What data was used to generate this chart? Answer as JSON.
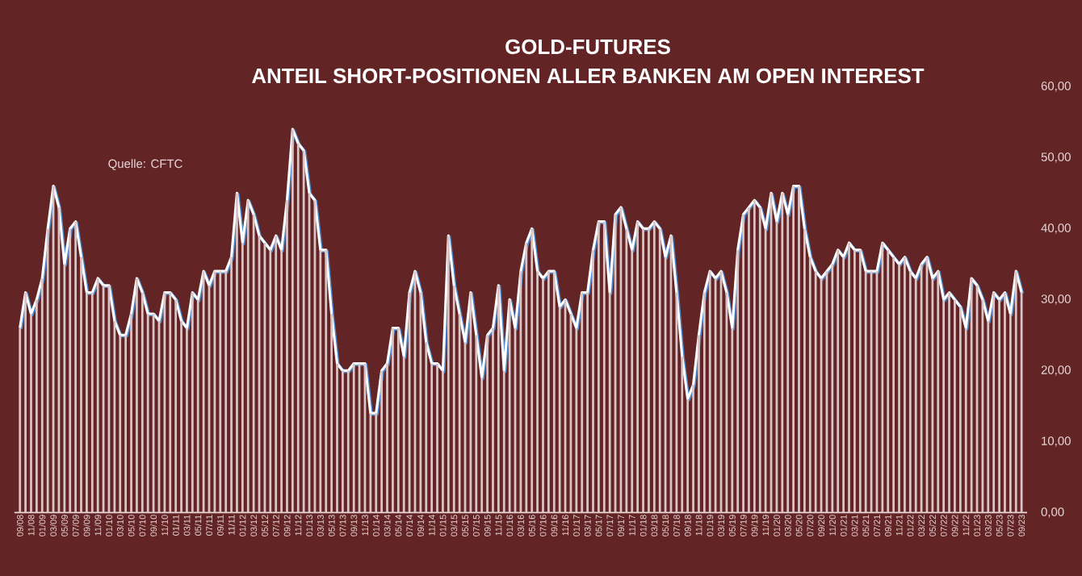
{
  "chart_data": {
    "type": "bar",
    "title": "GOLD-FUTURES",
    "subtitle": "ANTEIL SHORT-POSITIONEN ALLER BANKEN AM OPEN INTEREST",
    "annotations": [
      "Quelle: CFTC"
    ],
    "categories": [
      "09/08",
      null,
      "11/08",
      null,
      "01/09",
      null,
      "03/09",
      null,
      "05/09",
      null,
      "07/09",
      null,
      "09/09",
      null,
      "11/09",
      null,
      "01/10",
      null,
      "03/10",
      null,
      "05/10",
      null,
      "07/10",
      null,
      "09/10",
      null,
      "11/10",
      null,
      "01/11",
      null,
      "03/11",
      null,
      "05/11",
      null,
      "07/11",
      null,
      "09/11",
      null,
      "11/11",
      null,
      "01/12",
      null,
      "03/12",
      null,
      "05/12",
      null,
      "07/12",
      null,
      "09/12",
      null,
      "11/12",
      null,
      "01/13",
      null,
      "03/13",
      null,
      "05/13",
      null,
      "07/13",
      null,
      "09/13",
      null,
      "11/13",
      null,
      "01/14",
      null,
      "03/14",
      null,
      "05/14",
      null,
      "07/14",
      null,
      "09/14",
      null,
      "11/14",
      null,
      "01/15",
      null,
      "03/15",
      null,
      "05/15",
      null,
      "07/15",
      null,
      "09/15",
      null,
      "11/15",
      null,
      "01/16",
      null,
      "03/16",
      null,
      "05/16",
      null,
      "07/16",
      null,
      "09/16",
      null,
      "11/16",
      null,
      "01/17",
      null,
      "03/17",
      null,
      "05/17",
      null,
      "07/17",
      null,
      "09/17",
      null,
      "11/17",
      null,
      "01/18",
      null,
      "03/18",
      null,
      "05/18",
      null,
      "07/18",
      null,
      "09/18",
      null,
      "11/18",
      null,
      "01/19",
      null,
      "03/19",
      null,
      "05/19",
      null,
      "07/19",
      null,
      "09/19",
      null,
      "11/19",
      null,
      "01/20",
      null,
      "03/20",
      null,
      "05/20",
      null,
      "07/20",
      null,
      "09/20",
      null,
      "11/20",
      null,
      "01/21",
      null,
      "03/21",
      null,
      "05/21",
      null,
      "07/21",
      null,
      "09/21",
      null,
      "11/21",
      null,
      "01/22",
      null,
      "03/22",
      null,
      "05/22",
      null,
      "07/22",
      null,
      "09/22",
      null,
      "11/22",
      null,
      "01/23",
      null,
      "03/23",
      null,
      "05/23",
      null,
      "07/23",
      null,
      "09/23"
    ],
    "series": [
      {
        "color": "#dcc4c4",
        "values": [
          26,
          31,
          28,
          30,
          33,
          40,
          46,
          43,
          35,
          40,
          41,
          36,
          31,
          31,
          33,
          32,
          32,
          27,
          25,
          25,
          28,
          33,
          31,
          28,
          28,
          27,
          31,
          31,
          30,
          27,
          26,
          31,
          30,
          34,
          32,
          34,
          34,
          34,
          36,
          45,
          38,
          44,
          42,
          39,
          38,
          37,
          39,
          37,
          44,
          54,
          52,
          51,
          45,
          44,
          37,
          37,
          28,
          21,
          20,
          20,
          21,
          21,
          21,
          14,
          14,
          20,
          21,
          26,
          26,
          22,
          31,
          34,
          31,
          24,
          21,
          21,
          20,
          39,
          32,
          28,
          24,
          31,
          25,
          19,
          25,
          26,
          32,
          20,
          30,
          26,
          34,
          38,
          40,
          34,
          33,
          34,
          34,
          29,
          30,
          28,
          26,
          31,
          31,
          37,
          41,
          41,
          31,
          42,
          43,
          40,
          37,
          41,
          40,
          40,
          41,
          40,
          36,
          39,
          31,
          22,
          16,
          18,
          25,
          31,
          34,
          33,
          34,
          31,
          26,
          37,
          42,
          43,
          44,
          43,
          40,
          45,
          41,
          45,
          42,
          46,
          46,
          40,
          36,
          34,
          33,
          34,
          35,
          37,
          36,
          38,
          37,
          37,
          34,
          34,
          34,
          38,
          37,
          36,
          35,
          36,
          34,
          33,
          35,
          36,
          33,
          34,
          30,
          31,
          30,
          29,
          26,
          33,
          32,
          30,
          27,
          31,
          30,
          31,
          28,
          34,
          31
        ]
      },
      {
        "type": "line",
        "color": "#ffffff",
        "values": [
          26,
          31,
          28,
          30,
          33,
          40,
          46,
          43,
          35,
          40,
          41,
          36,
          31,
          31,
          33,
          32,
          32,
          27,
          25,
          25,
          28,
          33,
          31,
          28,
          28,
          27,
          31,
          31,
          30,
          27,
          26,
          31,
          30,
          34,
          32,
          34,
          34,
          34,
          36,
          45,
          38,
          44,
          42,
          39,
          38,
          37,
          39,
          37,
          44,
          54,
          52,
          51,
          45,
          44,
          37,
          37,
          28,
          21,
          20,
          20,
          21,
          21,
          21,
          14,
          14,
          20,
          21,
          26,
          26,
          22,
          31,
          34,
          31,
          24,
          21,
          21,
          20,
          39,
          32,
          28,
          24,
          31,
          25,
          19,
          25,
          26,
          32,
          20,
          30,
          26,
          34,
          38,
          40,
          34,
          33,
          34,
          34,
          29,
          30,
          28,
          26,
          31,
          31,
          37,
          41,
          41,
          31,
          42,
          43,
          40,
          37,
          41,
          40,
          40,
          41,
          40,
          36,
          39,
          31,
          22,
          16,
          18,
          25,
          31,
          34,
          33,
          34,
          31,
          26,
          37,
          42,
          43,
          44,
          43,
          40,
          45,
          41,
          45,
          42,
          46,
          46,
          40,
          36,
          34,
          33,
          34,
          35,
          37,
          36,
          38,
          37,
          37,
          34,
          34,
          34,
          38,
          37,
          36,
          35,
          36,
          34,
          33,
          35,
          36,
          33,
          34,
          30,
          31,
          30,
          29,
          26,
          33,
          32,
          30,
          27,
          31,
          30,
          31,
          28,
          34,
          31
        ]
      }
    ],
    "ylim": [
      0,
      60
    ],
    "yticks": [
      {
        "value": 0,
        "label": "0,00"
      },
      {
        "value": 10,
        "label": "10,00"
      },
      {
        "value": 20,
        "label": "20,00"
      },
      {
        "value": 30,
        "label": "30,00"
      },
      {
        "value": 40,
        "label": "40,00"
      },
      {
        "value": 50,
        "label": "50,00"
      },
      {
        "value": 60,
        "label": "60,00"
      }
    ],
    "marker": "none"
  }
}
